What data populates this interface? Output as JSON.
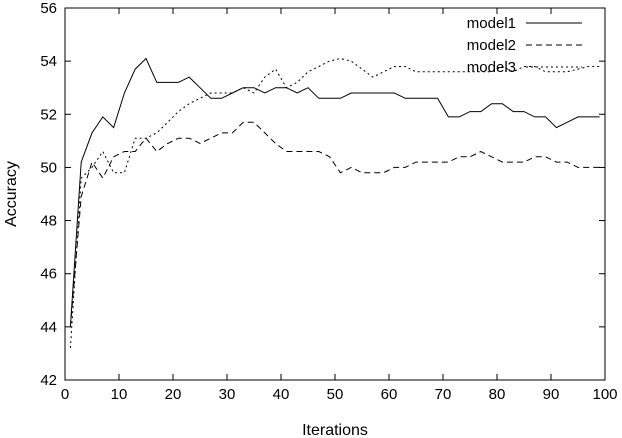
{
  "chart_data": {
    "type": "line",
    "title": "",
    "xlabel": "Iterations",
    "ylabel": "Accuracy",
    "xlim": [
      0,
      100
    ],
    "ylim": [
      42,
      56
    ],
    "xticks": [
      0,
      10,
      20,
      30,
      40,
      50,
      60,
      70,
      80,
      90,
      100
    ],
    "yticks": [
      42,
      44,
      46,
      48,
      50,
      52,
      54,
      56
    ],
    "grid": false,
    "legend_position": "top-right",
    "series": [
      {
        "name": "model1",
        "dash": "solid",
        "x": [
          1,
          3,
          5,
          7,
          9,
          11,
          13,
          15,
          17,
          19,
          21,
          23,
          25,
          27,
          29,
          31,
          33,
          35,
          37,
          39,
          41,
          43,
          45,
          47,
          49,
          51,
          53,
          55,
          57,
          59,
          61,
          63,
          65,
          67,
          69,
          71,
          73,
          75,
          77,
          79,
          81,
          83,
          85,
          87,
          89,
          91,
          93,
          95,
          97,
          99
        ],
        "y": [
          44.0,
          50.2,
          51.3,
          51.9,
          51.5,
          52.8,
          53.7,
          54.1,
          53.2,
          53.2,
          53.2,
          53.4,
          53.0,
          52.6,
          52.6,
          52.8,
          53.0,
          53.0,
          52.8,
          53.0,
          53.0,
          52.8,
          53.0,
          52.6,
          52.6,
          52.6,
          52.8,
          52.8,
          52.8,
          52.8,
          52.8,
          52.6,
          52.6,
          52.6,
          52.6,
          51.9,
          51.9,
          52.1,
          52.1,
          52.4,
          52.4,
          52.1,
          52.1,
          51.9,
          51.9,
          51.5,
          51.7,
          51.9,
          51.9,
          51.9
        ]
      },
      {
        "name": "model2",
        "dash": "dashed",
        "x": [
          1,
          3,
          5,
          7,
          9,
          11,
          13,
          15,
          17,
          19,
          21,
          23,
          25,
          27,
          29,
          31,
          33,
          35,
          37,
          39,
          41,
          43,
          45,
          47,
          49,
          51,
          53,
          55,
          57,
          59,
          61,
          63,
          65,
          67,
          69,
          71,
          73,
          75,
          77,
          79,
          81,
          83,
          85,
          87,
          89,
          91,
          93,
          95,
          97,
          99
        ],
        "y": [
          44.0,
          48.9,
          50.2,
          49.6,
          50.4,
          50.6,
          50.6,
          51.1,
          50.6,
          50.9,
          51.1,
          51.1,
          50.9,
          51.1,
          51.3,
          51.3,
          51.7,
          51.7,
          51.3,
          50.9,
          50.6,
          50.6,
          50.6,
          50.6,
          50.4,
          49.8,
          50.0,
          49.8,
          49.8,
          49.8,
          50.0,
          50.0,
          50.2,
          50.2,
          50.2,
          50.2,
          50.4,
          50.4,
          50.6,
          50.4,
          50.2,
          50.2,
          50.2,
          50.4,
          50.4,
          50.2,
          50.2,
          50.0,
          50.0,
          50.0
        ]
      },
      {
        "name": "model3",
        "dash": "dotted",
        "x": [
          1,
          3,
          5,
          7,
          9,
          11,
          13,
          15,
          17,
          19,
          21,
          23,
          25,
          27,
          29,
          31,
          33,
          35,
          37,
          39,
          41,
          43,
          45,
          47,
          49,
          51,
          53,
          55,
          57,
          59,
          61,
          63,
          65,
          67,
          69,
          71,
          73,
          75,
          77,
          79,
          81,
          83,
          85,
          87,
          89,
          91,
          93,
          95,
          97,
          99
        ],
        "y": [
          43.2,
          49.6,
          50.0,
          50.6,
          49.8,
          49.8,
          51.1,
          51.1,
          51.3,
          51.7,
          52.1,
          52.4,
          52.6,
          52.8,
          52.8,
          52.8,
          53.0,
          52.8,
          53.4,
          53.7,
          53.0,
          53.2,
          53.6,
          53.8,
          54.0,
          54.1,
          54.0,
          53.7,
          53.4,
          53.6,
          53.8,
          53.8,
          53.6,
          53.6,
          53.6,
          53.6,
          53.6,
          53.6,
          53.6,
          53.6,
          53.8,
          53.6,
          53.8,
          53.8,
          53.6,
          53.6,
          53.6,
          53.7,
          53.8,
          53.8
        ]
      }
    ]
  }
}
